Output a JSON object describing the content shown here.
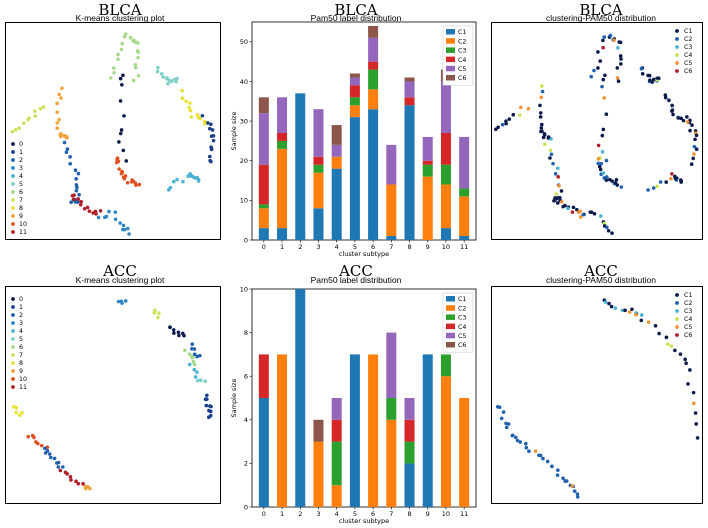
{
  "panels": [
    {
      "title": "BLCA",
      "subtitle": "K-means clustering plot"
    },
    {
      "title": "BLCA",
      "subtitle": "Pam50 label distribution"
    },
    {
      "title": "BLCA",
      "subtitle": "clustering-PAM50 distribution"
    },
    {
      "title": "ACC",
      "subtitle": "K-means clustering plot"
    },
    {
      "title": "ACC",
      "subtitle": "Pam50 label distribution"
    },
    {
      "title": "ACC",
      "subtitle": "clustering-PAM50 distribution"
    }
  ],
  "kmeans_legend": [
    "0",
    "1",
    "2",
    "3",
    "4",
    "5",
    "6",
    "7",
    "8",
    "9",
    "10",
    "11"
  ],
  "kmeans_colors": [
    "#0d1b4c",
    "#173e8a",
    "#1f5fae",
    "#2e88c4",
    "#4ab3d3",
    "#7fd1c8",
    "#a8d98a",
    "#cce25a",
    "#e9e135",
    "#f2a23a",
    "#e2501f",
    "#b0202a"
  ],
  "pam50_legend": [
    "C1",
    "C2",
    "C3",
    "C4",
    "C5",
    "C6"
  ],
  "scatter_pam_colors": [
    "#0d1b4c",
    "#2060b0",
    "#4ab3d3",
    "#cce25a",
    "#f29433",
    "#b0202a"
  ],
  "chart_data": [
    {
      "type": "bar",
      "stacked": true,
      "title": "Pam50 label distribution",
      "xlabel": "cluster subtype",
      "ylabel": "Sample size",
      "categories": [
        "0",
        "1",
        "2",
        "3",
        "4",
        "5",
        "6",
        "7",
        "8",
        "9",
        "10",
        "11"
      ],
      "ylim": [
        0,
        55
      ],
      "yticks": [
        0,
        10,
        20,
        30,
        40,
        50
      ],
      "series": [
        {
          "name": "C1",
          "color": "#1f77b4",
          "values": [
            3,
            3,
            37,
            8,
            18,
            31,
            33,
            1,
            34,
            0,
            3,
            1
          ]
        },
        {
          "name": "C2",
          "color": "#ff7f0e",
          "values": [
            5,
            20,
            0,
            9,
            3,
            3,
            5,
            13,
            0,
            16,
            11,
            10
          ]
        },
        {
          "name": "C3",
          "color": "#2ca02c",
          "values": [
            1,
            2,
            0,
            2,
            0,
            2,
            5,
            0,
            0,
            3,
            5,
            2
          ]
        },
        {
          "name": "C4",
          "color": "#d62728",
          "values": [
            10,
            2,
            0,
            2,
            0,
            3,
            2,
            0,
            2,
            1,
            8,
            0
          ]
        },
        {
          "name": "C5",
          "color": "#9467bd",
          "values": [
            13,
            9,
            0,
            12,
            3,
            2,
            6,
            10,
            4,
            6,
            13,
            13
          ]
        },
        {
          "name": "C6",
          "color": "#8c564b",
          "values": [
            4,
            0,
            0,
            0,
            5,
            1,
            3,
            0,
            1,
            0,
            3,
            0
          ]
        }
      ]
    },
    {
      "type": "bar",
      "stacked": true,
      "title": "Pam50 label distribution",
      "xlabel": "cluster subtype",
      "ylabel": "Sample size",
      "categories": [
        "0",
        "1",
        "2",
        "3",
        "4",
        "5",
        "6",
        "7",
        "8",
        "9",
        "10",
        "11"
      ],
      "ylim": [
        0,
        10
      ],
      "yticks": [
        0,
        2,
        4,
        6,
        8,
        10
      ],
      "series": [
        {
          "name": "C1",
          "color": "#1f77b4",
          "values": [
            5,
            0,
            10,
            0,
            0,
            7,
            0,
            0,
            2,
            7,
            0,
            0
          ]
        },
        {
          "name": "C2",
          "color": "#ff7f0e",
          "values": [
            0,
            7,
            0,
            3,
            1,
            0,
            7,
            4,
            0,
            0,
            6,
            5
          ]
        },
        {
          "name": "C3",
          "color": "#2ca02c",
          "values": [
            0,
            0,
            0,
            0,
            2,
            0,
            0,
            1,
            1,
            0,
            1,
            0
          ]
        },
        {
          "name": "C4",
          "color": "#d62728",
          "values": [
            2,
            0,
            0,
            0,
            1,
            0,
            0,
            0,
            1,
            0,
            0,
            0
          ]
        },
        {
          "name": "C5",
          "color": "#9467bd",
          "values": [
            0,
            0,
            0,
            0,
            1,
            0,
            0,
            3,
            1,
            0,
            0,
            0
          ]
        },
        {
          "name": "C6",
          "color": "#8c564b",
          "values": [
            0,
            0,
            0,
            1,
            0,
            0,
            0,
            0,
            0,
            0,
            0,
            0
          ]
        }
      ]
    }
  ]
}
